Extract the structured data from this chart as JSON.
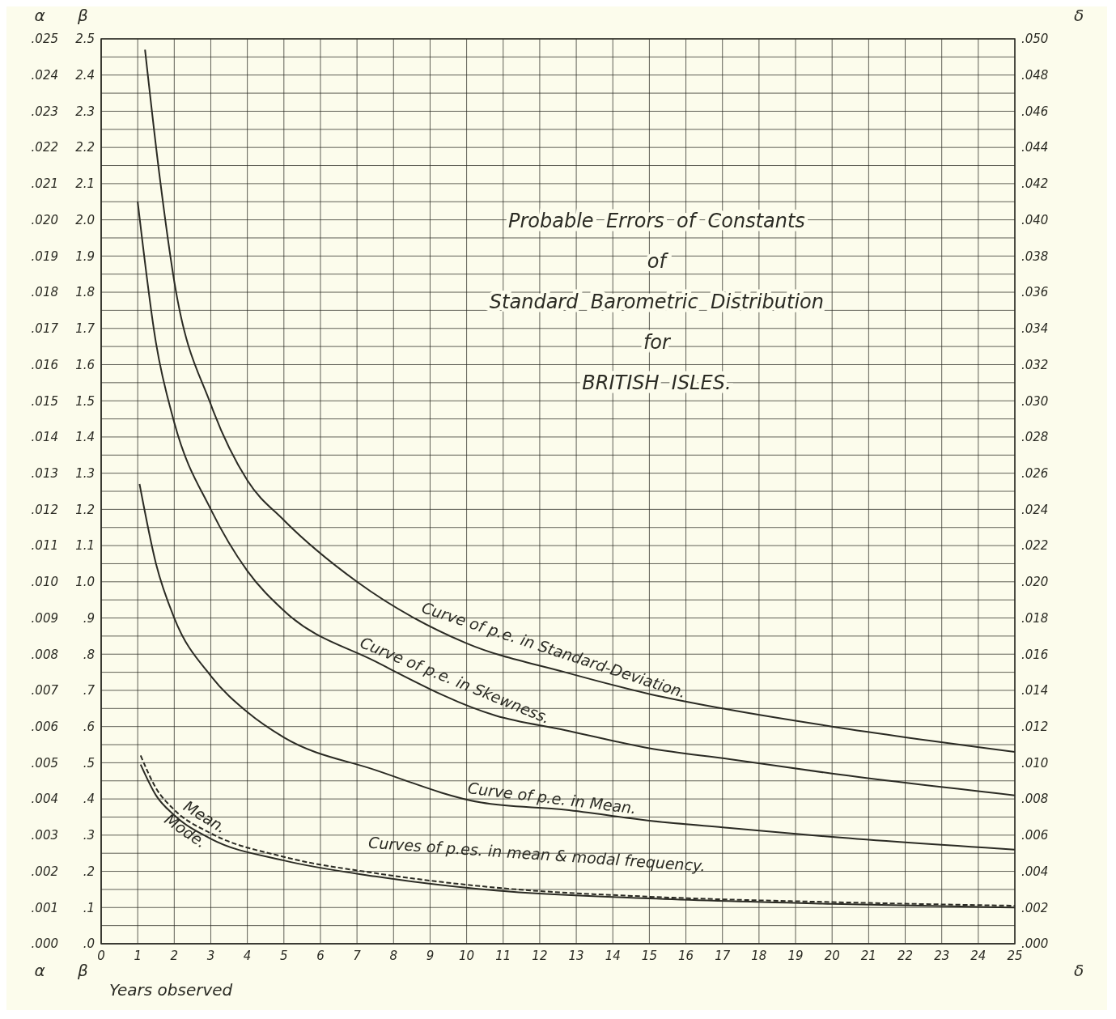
{
  "chart_data": {
    "type": "line",
    "title": "Probable  Errors  of  Constants\nof\nStandard  Barometric  Distribution\nfor\nBRITISH  ISLES.",
    "xlabel": "Years observed",
    "ylabel": "β",
    "y2label": "δ",
    "y3label": "α",
    "xlim": [
      0,
      25
    ],
    "xticks": [
      0,
      1,
      2,
      3,
      4,
      5,
      6,
      7,
      8,
      9,
      10,
      11,
      12,
      13,
      14,
      15,
      16,
      17,
      18,
      19,
      20,
      21,
      22,
      23,
      24,
      25
    ],
    "ylim": [
      0,
      2.5
    ],
    "yticks": [
      {
        "value": 0,
        "label": ".0"
      },
      {
        "value": 0.05,
        "label": null
      },
      {
        "value": 0.1,
        "label": ".1"
      },
      {
        "value": 0.15,
        "label": null
      },
      {
        "value": 0.2,
        "label": ".2"
      },
      {
        "value": 0.25,
        "label": null
      },
      {
        "value": 0.3,
        "label": ".3"
      },
      {
        "value": 0.35,
        "label": null
      },
      {
        "value": 0.4,
        "label": ".4"
      },
      {
        "value": 0.45,
        "label": null
      },
      {
        "value": 0.5,
        "label": ".5"
      },
      {
        "value": 0.55,
        "label": null
      },
      {
        "value": 0.6,
        "label": ".6"
      },
      {
        "value": 0.65,
        "label": null
      },
      {
        "value": 0.7,
        "label": ".7"
      },
      {
        "value": 0.75,
        "label": null
      },
      {
        "value": 0.8,
        "label": ".8"
      },
      {
        "value": 0.85,
        "label": null
      },
      {
        "value": 0.9,
        "label": ".9"
      },
      {
        "value": 0.95,
        "label": null
      },
      {
        "value": 1,
        "label": "1.0"
      },
      {
        "value": 1.05,
        "label": null
      },
      {
        "value": 1.1,
        "label": "1.1"
      },
      {
        "value": 1.15,
        "label": null
      },
      {
        "value": 1.2,
        "label": "1.2"
      },
      {
        "value": 1.25,
        "label": null
      },
      {
        "value": 1.3,
        "label": "1.3"
      },
      {
        "value": 1.35,
        "label": null
      },
      {
        "value": 1.4,
        "label": "1.4"
      },
      {
        "value": 1.45,
        "label": null
      },
      {
        "value": 1.5,
        "label": "1.5"
      },
      {
        "value": 1.55,
        "label": null
      },
      {
        "value": 1.6,
        "label": "1.6"
      },
      {
        "value": 1.65,
        "label": null
      },
      {
        "value": 1.7,
        "label": "1.7"
      },
      {
        "value": 1.75,
        "label": null
      },
      {
        "value": 1.8,
        "label": "1.8"
      },
      {
        "value": 1.85,
        "label": null
      },
      {
        "value": 1.9,
        "label": "1.9"
      },
      {
        "value": 1.95,
        "label": null
      },
      {
        "value": 2,
        "label": "2.0"
      },
      {
        "value": 2.05,
        "label": null
      },
      {
        "value": 2.1,
        "label": "2.1"
      },
      {
        "value": 2.15,
        "label": null
      },
      {
        "value": 2.2,
        "label": "2.2"
      },
      {
        "value": 2.25,
        "label": null
      },
      {
        "value": 2.3,
        "label": "2.3"
      },
      {
        "value": 2.35,
        "label": null
      },
      {
        "value": 2.4,
        "label": "2.4"
      },
      {
        "value": 2.45,
        "label": null
      },
      {
        "value": 2.5,
        "label": "2.5"
      }
    ],
    "y2lim": [
      0,
      0.05
    ],
    "y2ticks": [
      {
        "value": 0,
        "label": ".000"
      },
      {
        "value": 0.002,
        "label": ".002"
      },
      {
        "value": 0.004,
        "label": ".004"
      },
      {
        "value": 0.006,
        "label": ".006"
      },
      {
        "value": 0.008,
        "label": ".008"
      },
      {
        "value": 0.01,
        "label": ".010"
      },
      {
        "value": 0.012,
        "label": ".012"
      },
      {
        "value": 0.014,
        "label": ".014"
      },
      {
        "value": 0.016,
        "label": ".016"
      },
      {
        "value": 0.018,
        "label": ".018"
      },
      {
        "value": 0.02,
        "label": ".020"
      },
      {
        "value": 0.022,
        "label": ".022"
      },
      {
        "value": 0.024,
        "label": ".024"
      },
      {
        "value": 0.026,
        "label": ".026"
      },
      {
        "value": 0.028,
        "label": ".028"
      },
      {
        "value": 0.03,
        "label": ".030"
      },
      {
        "value": 0.032,
        "label": ".032"
      },
      {
        "value": 0.034,
        "label": ".034"
      },
      {
        "value": 0.036,
        "label": ".036"
      },
      {
        "value": 0.038,
        "label": ".038"
      },
      {
        "value": 0.04,
        "label": ".040"
      },
      {
        "value": 0.042,
        "label": ".042"
      },
      {
        "value": 0.044,
        "label": ".044"
      },
      {
        "value": 0.046,
        "label": ".046"
      },
      {
        "value": 0.048,
        "label": ".048"
      },
      {
        "value": 0.05,
        "label": ".050"
      }
    ],
    "y3lim": [
      0,
      0.025
    ],
    "y3ticks": [
      {
        "value": 0,
        "label": ".000"
      },
      {
        "value": 0.001,
        "label": ".001"
      },
      {
        "value": 0.002,
        "label": ".002"
      },
      {
        "value": 0.003,
        "label": ".003"
      },
      {
        "value": 0.004,
        "label": ".004"
      },
      {
        "value": 0.005,
        "label": ".005"
      },
      {
        "value": 0.006,
        "label": ".006"
      },
      {
        "value": 0.007,
        "label": ".007"
      },
      {
        "value": 0.008,
        "label": ".008"
      },
      {
        "value": 0.009,
        "label": ".009"
      },
      {
        "value": 0.01,
        "label": ".010"
      },
      {
        "value": 0.011,
        "label": ".011"
      },
      {
        "value": 0.012,
        "label": ".012"
      },
      {
        "value": 0.013,
        "label": ".013"
      },
      {
        "value": 0.014,
        "label": ".014"
      },
      {
        "value": 0.015,
        "label": ".015"
      },
      {
        "value": 0.016,
        "label": ".016"
      },
      {
        "value": 0.017,
        "label": ".017"
      },
      {
        "value": 0.018,
        "label": ".018"
      },
      {
        "value": 0.019,
        "label": ".019"
      },
      {
        "value": 0.02,
        "label": ".020"
      },
      {
        "value": 0.021,
        "label": ".021"
      },
      {
        "value": 0.022,
        "label": ".022"
      },
      {
        "value": 0.023,
        "label": ".023"
      },
      {
        "value": 0.024,
        "label": ".024"
      },
      {
        "value": 0.025,
        "label": ".025"
      }
    ],
    "grid": true,
    "series": [
      {
        "name": "Curve of p.e. in Standard-Deviation.",
        "color": "#2b2b24",
        "x": [
          1.2,
          1.6,
          2,
          3,
          4,
          5,
          7,
          10,
          12.7,
          15,
          17,
          20,
          25
        ],
        "values": [
          2.47,
          2.12,
          1.83,
          1.49,
          1.28,
          1.17,
          1.0,
          0.83,
          0.75,
          0.69,
          0.65,
          0.6,
          0.53
        ]
      },
      {
        "name": "Curve of p.e. in Skewness.",
        "color": "#2b2b24",
        "x": [
          1,
          1.5,
          2,
          3,
          4,
          5,
          7.5,
          10.8,
          12.7,
          15,
          17.2,
          20,
          25
        ],
        "values": [
          2.05,
          1.66,
          1.44,
          1.2,
          1.03,
          0.92,
          0.78,
          0.63,
          0.59,
          0.54,
          0.51,
          0.47,
          0.41
        ]
      },
      {
        "name": "Curve of p.e. in Mean.",
        "color": "#2b2b24",
        "x": [
          1.05,
          1.5,
          2,
          3,
          4,
          5,
          7.5,
          10.4,
          12.7,
          15,
          17.2,
          20,
          25
        ],
        "values": [
          1.27,
          1.05,
          0.9,
          0.74,
          0.64,
          0.57,
          0.48,
          0.39,
          0.37,
          0.34,
          0.32,
          0.295,
          0.26
        ]
      },
      {
        "name": "Mean.",
        "color": "#2b2b24",
        "line_style": "dashed",
        "x": [
          1.08,
          1.5,
          2,
          3,
          5,
          7.5,
          10.8,
          15,
          20,
          25
        ],
        "values": [
          0.52,
          0.43,
          0.37,
          0.305,
          0.24,
          0.195,
          0.155,
          0.13,
          0.115,
          0.105
        ]
      },
      {
        "name": "Mode.",
        "color": "#2b2b24",
        "x": [
          1.08,
          1.5,
          2,
          3,
          5,
          7.5,
          10.8,
          15,
          20,
          25
        ],
        "values": [
          0.495,
          0.41,
          0.355,
          0.29,
          0.23,
          0.186,
          0.147,
          0.125,
          0.11,
          0.1
        ]
      }
    ],
    "annotations": [
      "Curves of p.es. in mean & modal frequency."
    ]
  }
}
